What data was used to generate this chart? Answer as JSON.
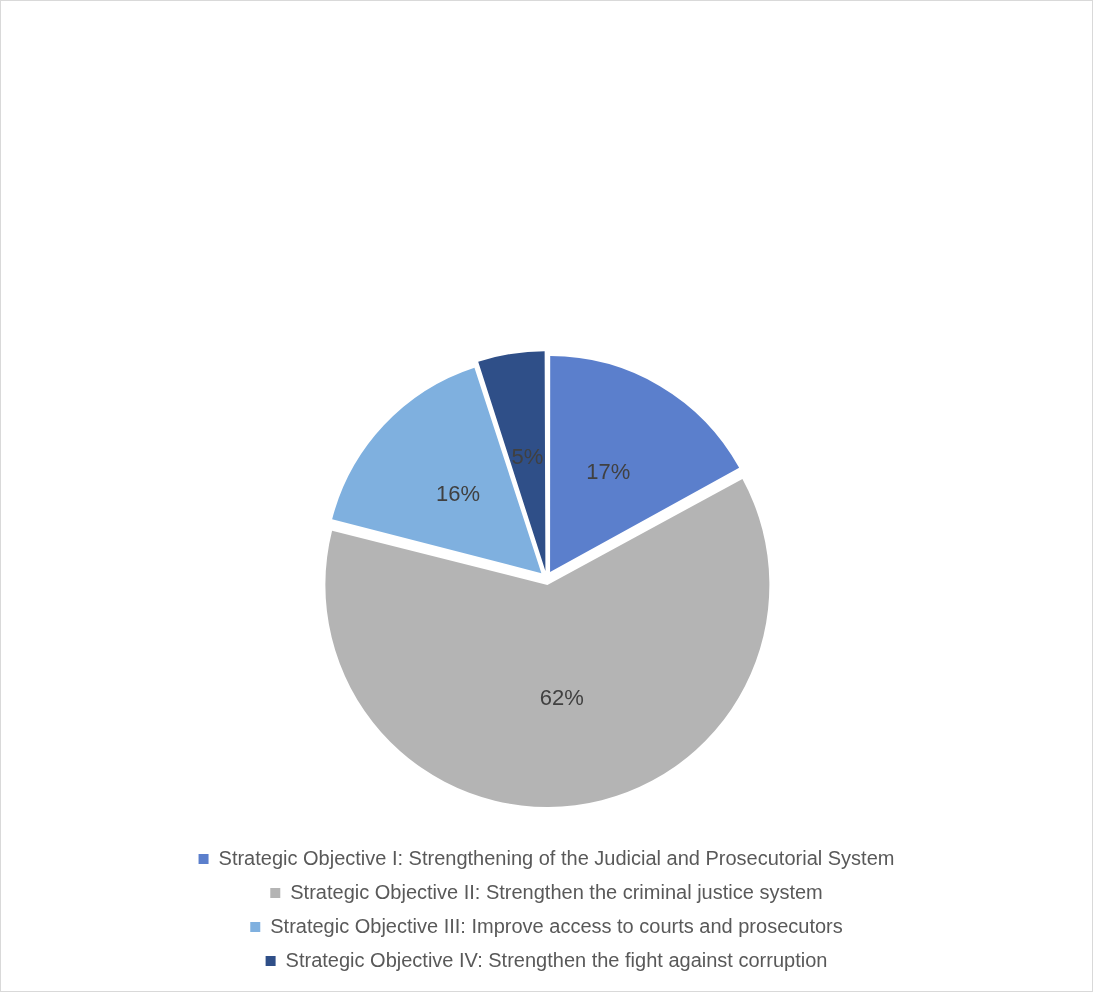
{
  "chart_data": {
    "type": "pie",
    "categories": [
      "Strategic Objective I: Strengthening of the Judicial and Prosecutorial System",
      "Strategic Objective II: Strengthen the criminal justice system",
      "Strategic Objective III: Improve access to courts and prosecutors",
      "Strategic Objective IV: Strengthen the fight against corruption"
    ],
    "values": [
      17,
      62,
      16,
      5
    ],
    "colors": [
      "#5b7fcc",
      "#b4b4b4",
      "#7fb0df",
      "#2f4f88"
    ],
    "value_labels": [
      "17%",
      "62%",
      "16%",
      "5%"
    ],
    "legend": "bottom"
  }
}
